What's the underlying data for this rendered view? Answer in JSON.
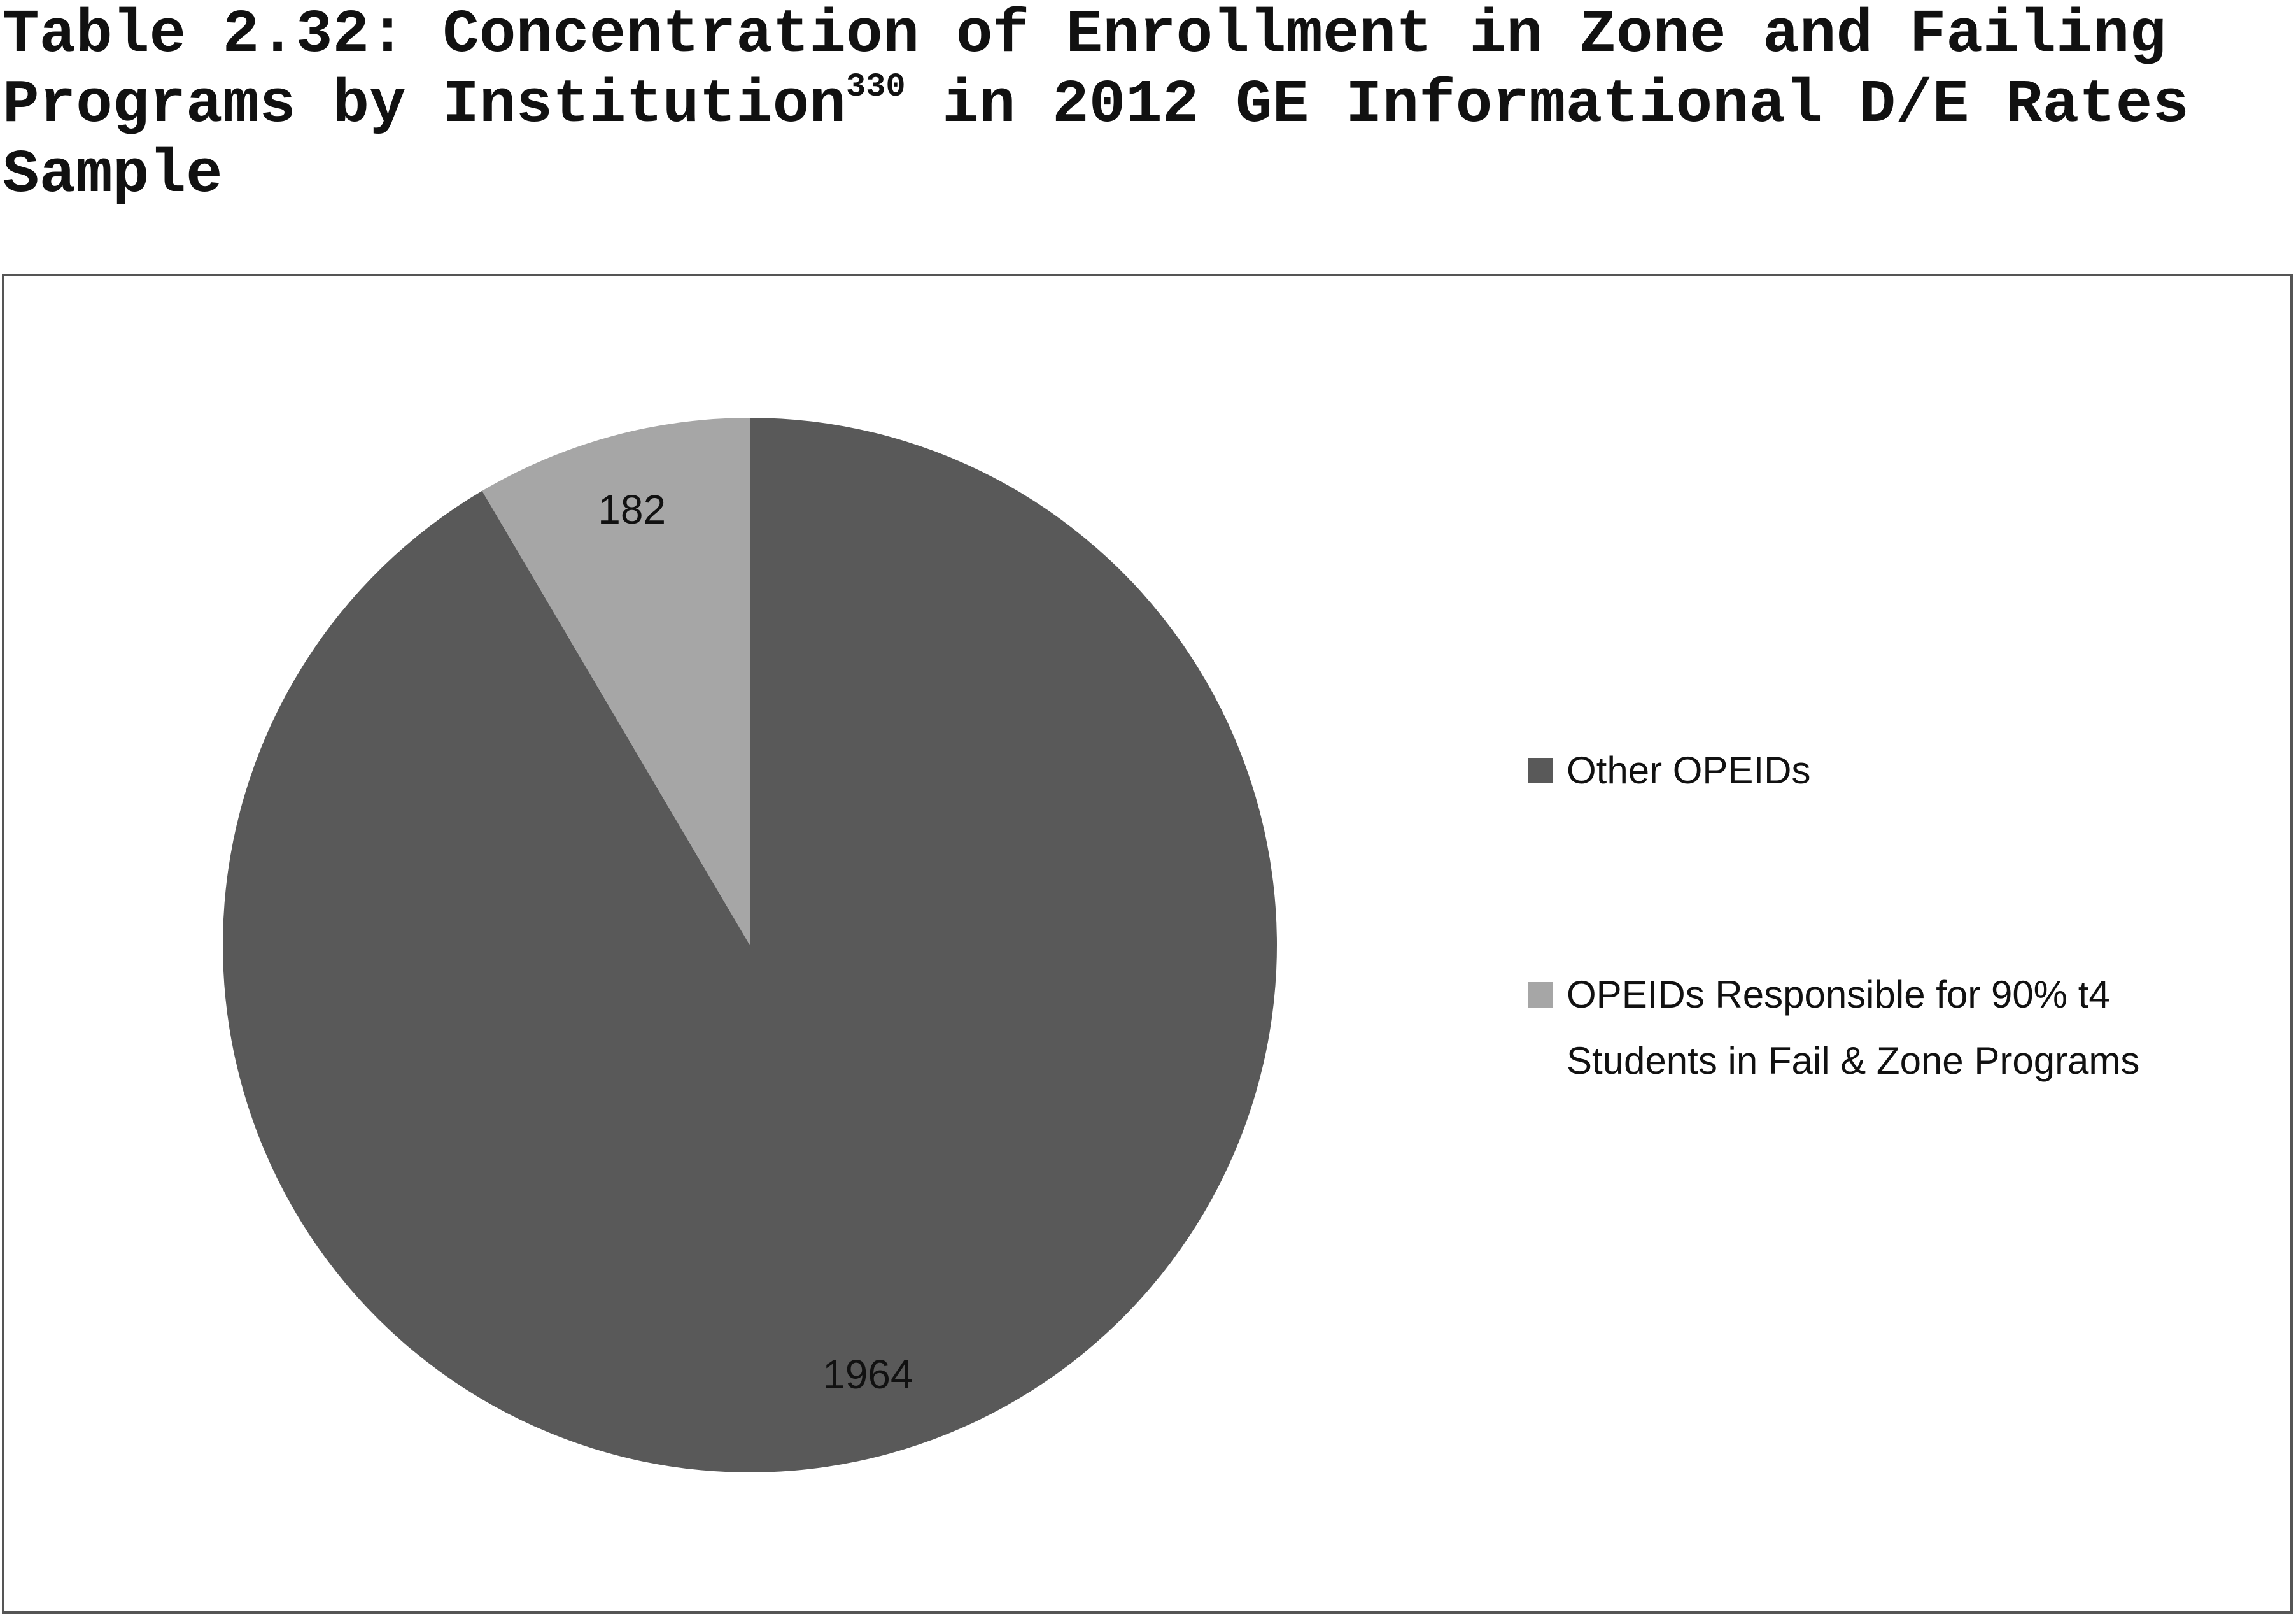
{
  "chart_data": {
    "type": "pie",
    "title": {
      "text": "Table 2.32: Concentration of Enrollment in Zone and Failing Programs by Institution",
      "footnote": "330",
      "continued": "in 2012 GE Informational D/E Rates Sample"
    },
    "series": [
      {
        "name": "Other OPEIDs",
        "color": "#595959",
        "value": 1964
      },
      {
        "name": "OPEIDs Responsible for 90% t4 Students in Fail & Zone Programs",
        "color": "#a6a6a6",
        "value": 182
      }
    ],
    "legend": "right"
  }
}
